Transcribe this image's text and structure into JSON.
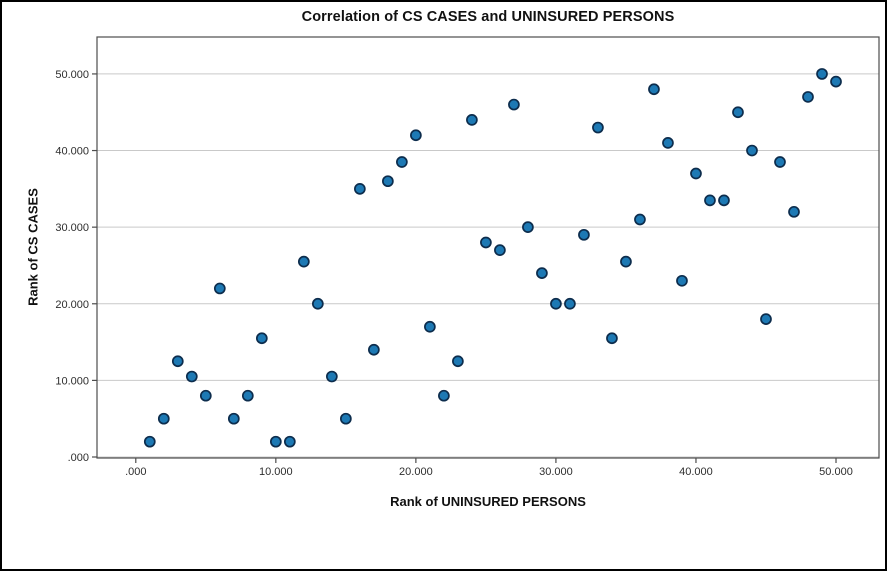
{
  "window": {
    "background": "#ffffff",
    "outer_border_color": "#000000"
  },
  "chart_data": {
    "type": "scatter",
    "title": "Correlation of CS CASES and UNINSURED PERSONS",
    "xlabel": "Rank of UNINSURED PERSONS",
    "ylabel": "Rank of CS CASES",
    "xlim": [
      -2.77,
      53.07
    ],
    "ylim": [
      -0.13,
      54.82
    ],
    "x_ticks": {
      "values": [
        0,
        10,
        20,
        30,
        40,
        50
      ],
      "labels": [
        ".000",
        "10.000",
        "20.000",
        "30.000",
        "40.000",
        "50.000"
      ]
    },
    "y_ticks": {
      "values": [
        0,
        10,
        20,
        30,
        40,
        50
      ],
      "labels": [
        ".000",
        "10.000",
        "20.000",
        "30.000",
        "40.000",
        "50.000"
      ]
    },
    "grid": "horizontal-only",
    "legend": "none",
    "colors": {
      "marker_fill": "#1d79b4",
      "marker_stroke": "#0d2d4d",
      "gridline": "#c9c9c9",
      "spine": "#4d4d4d",
      "tick_label": "#2e2e2e"
    },
    "marker_radius": 5,
    "points": [
      [
        1,
        2
      ],
      [
        2,
        5
      ],
      [
        3,
        12.5
      ],
      [
        4,
        10.5
      ],
      [
        5,
        8
      ],
      [
        6,
        22
      ],
      [
        7,
        5
      ],
      [
        8,
        8
      ],
      [
        9,
        15.5
      ],
      [
        10,
        2
      ],
      [
        11,
        2
      ],
      [
        12,
        25.5
      ],
      [
        13,
        20
      ],
      [
        14,
        10.5
      ],
      [
        15,
        5
      ],
      [
        16,
        35
      ],
      [
        17,
        14
      ],
      [
        18,
        36
      ],
      [
        19,
        38.5
      ],
      [
        20,
        42
      ],
      [
        21,
        17
      ],
      [
        22,
        8
      ],
      [
        23,
        12.5
      ],
      [
        24,
        44
      ],
      [
        25,
        28
      ],
      [
        26,
        27
      ],
      [
        27,
        46
      ],
      [
        28,
        30
      ],
      [
        29,
        24
      ],
      [
        30,
        20
      ],
      [
        31,
        20
      ],
      [
        32,
        29
      ],
      [
        33,
        43
      ],
      [
        34,
        15.5
      ],
      [
        35,
        25.5
      ],
      [
        36,
        31
      ],
      [
        37,
        48
      ],
      [
        38,
        41
      ],
      [
        39,
        23
      ],
      [
        40,
        37
      ],
      [
        41,
        33.5
      ],
      [
        42,
        33.5
      ],
      [
        43,
        45
      ],
      [
        44,
        40
      ],
      [
        45,
        18
      ],
      [
        46,
        38.5
      ],
      [
        47,
        32
      ],
      [
        48,
        47
      ],
      [
        49,
        50
      ],
      [
        50,
        49
      ]
    ]
  }
}
